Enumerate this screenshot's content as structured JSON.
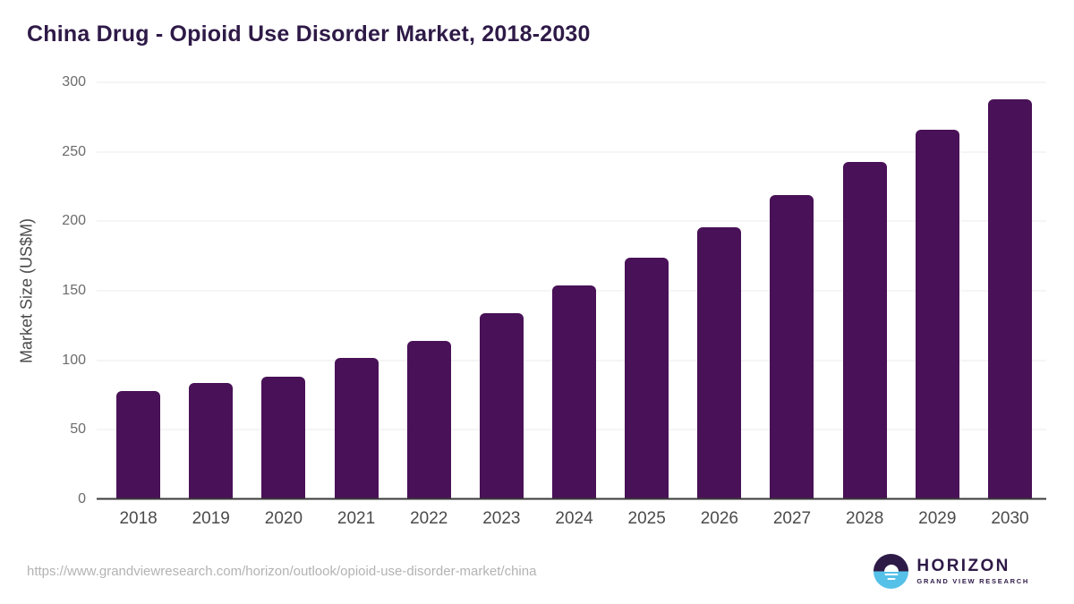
{
  "title": "China Drug - Opioid Use Disorder Market, 2018-2030",
  "source_url": "https://www.grandviewresearch.com/horizon/outlook/opioid-use-disorder-market/china",
  "logo": {
    "name": "HORIZON",
    "subtitle": "GRAND VIEW RESEARCH",
    "icon": "horizon-sun-over-water-icon"
  },
  "colors": {
    "bar": "#491157",
    "title_text": "#2e1a47",
    "axis_line": "#3a3a3a",
    "gridline": "#ebebeb",
    "y_tick_label": "#6c6c6c",
    "x_tick_label": "#4b4b4b",
    "url_text": "#b3b3b3",
    "logo_purple": "#2e1a47",
    "logo_blue": "#56c1e8",
    "background": "#ffffff"
  },
  "chart_data": {
    "type": "bar",
    "title": "China Drug - Opioid Use Disorder Market, 2018-2030",
    "categories": [
      "2018",
      "2019",
      "2020",
      "2021",
      "2022",
      "2023",
      "2024",
      "2025",
      "2026",
      "2027",
      "2028",
      "2029",
      "2030"
    ],
    "values": [
      78,
      84,
      88,
      102,
      114,
      134,
      154,
      174,
      196,
      219,
      243,
      266,
      288
    ],
    "xlabel": "",
    "ylabel": "Market Size (US$M)",
    "ylim": [
      0,
      300
    ],
    "yticks": [
      0,
      50,
      100,
      150,
      200,
      250,
      300
    ],
    "grid": true,
    "legend": false
  }
}
